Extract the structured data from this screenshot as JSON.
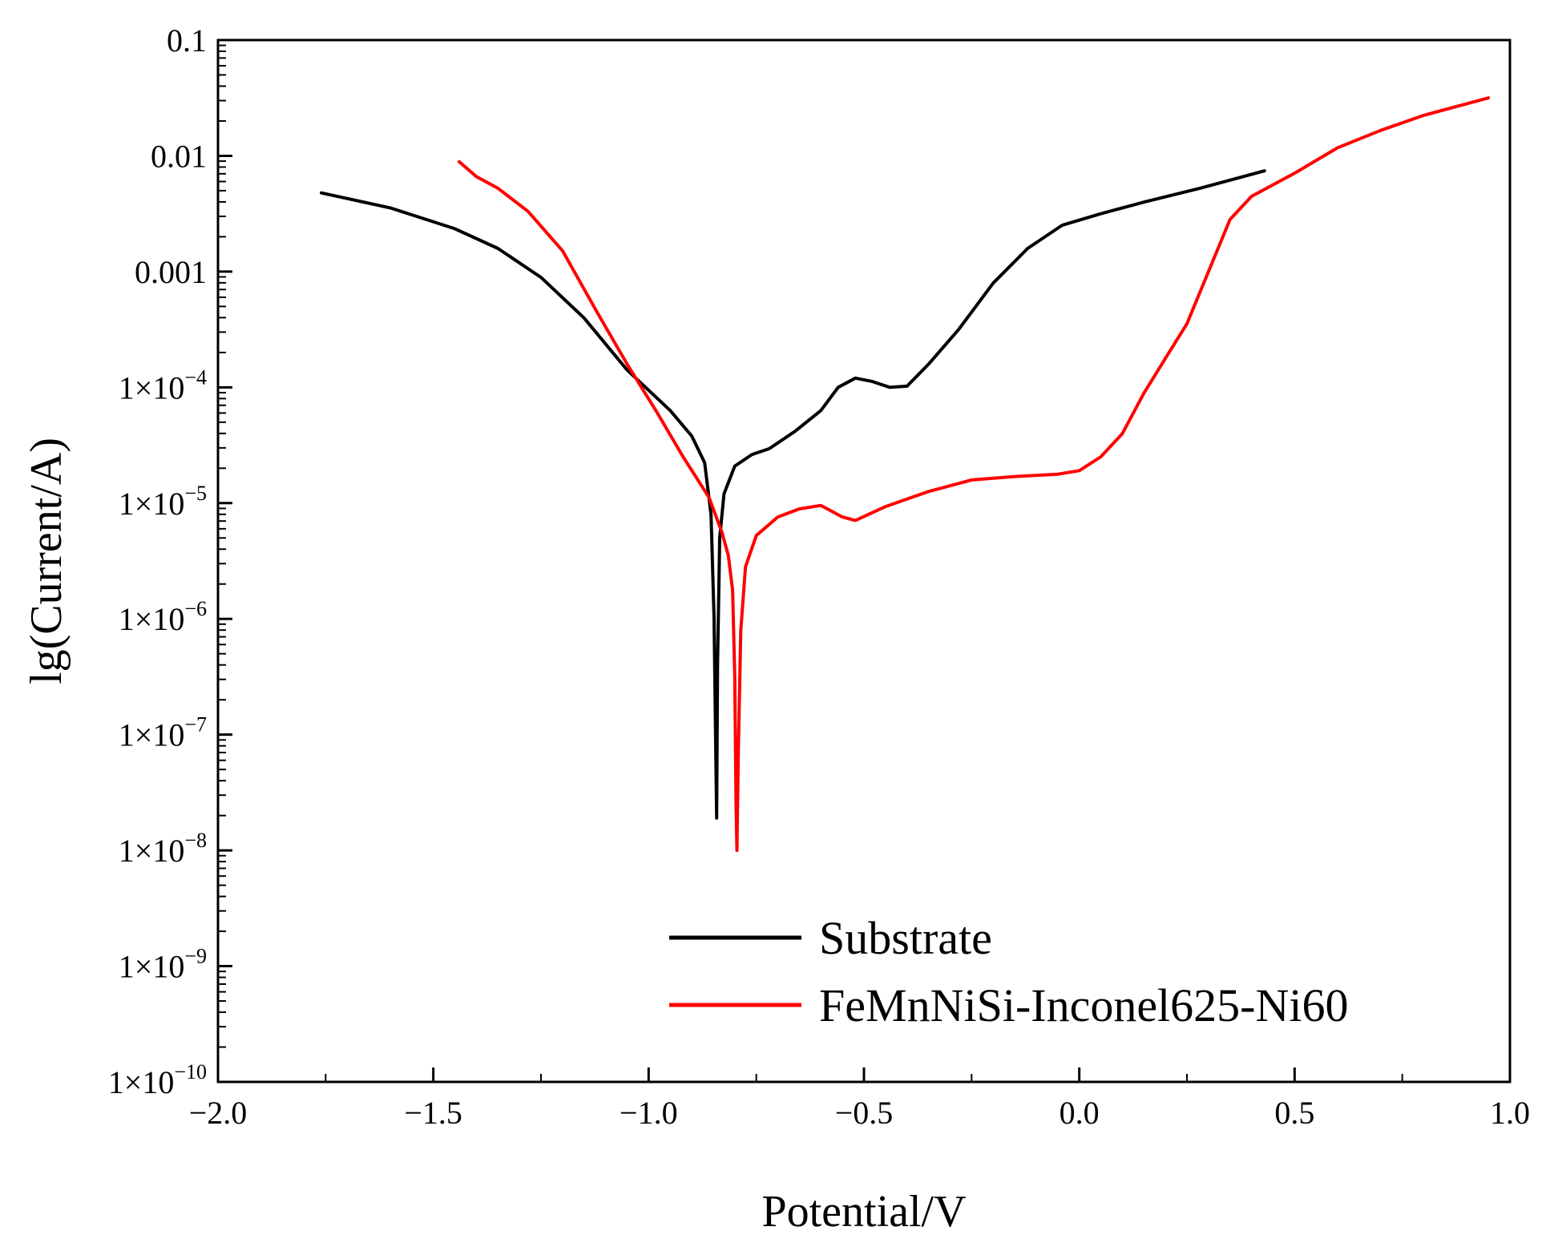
{
  "chart_data": {
    "type": "line",
    "title": "",
    "xlabel": "Potential/V",
    "ylabel": "lg(Current/A)",
    "xlim": [
      -2.0,
      1.0
    ],
    "ylim_log10": [
      -10,
      -1
    ],
    "y_scale": "log",
    "x_ticks": [
      {
        "value": -2.0,
        "label": "−2.0"
      },
      {
        "value": -1.5,
        "label": "−1.5"
      },
      {
        "value": -1.0,
        "label": "−1.0"
      },
      {
        "value": -0.5,
        "label": "−0.5"
      },
      {
        "value": 0.0,
        "label": "0.0"
      },
      {
        "value": 0.5,
        "label": "0.5"
      },
      {
        "value": 1.0,
        "label": "1.0"
      }
    ],
    "y_ticks": [
      {
        "exp": -1,
        "label": "0.1",
        "sup": ""
      },
      {
        "exp": -2,
        "label": "0.01",
        "sup": ""
      },
      {
        "exp": -3,
        "label": "0.001",
        "sup": ""
      },
      {
        "exp": -4,
        "label": "1×10",
        "sup": "−4"
      },
      {
        "exp": -5,
        "label": "1×10",
        "sup": "−5"
      },
      {
        "exp": -6,
        "label": "1×10",
        "sup": "−6"
      },
      {
        "exp": -7,
        "label": "1×10",
        "sup": "−7"
      },
      {
        "exp": -8,
        "label": "1×10",
        "sup": "−8"
      },
      {
        "exp": -9,
        "label": "1×10",
        "sup": "−9"
      },
      {
        "exp": -10,
        "label": "1×10",
        "sup": "−10"
      }
    ],
    "legend_position": "bottom-right",
    "series": [
      {
        "name": "Substrate",
        "color": "#000000",
        "points": [
          [
            -1.76,
            -2.32
          ],
          [
            -1.6,
            -2.45
          ],
          [
            -1.45,
            -2.63
          ],
          [
            -1.35,
            -2.8
          ],
          [
            -1.25,
            -3.05
          ],
          [
            -1.15,
            -3.4
          ],
          [
            -1.05,
            -3.85
          ],
          [
            -0.95,
            -4.2
          ],
          [
            -0.9,
            -4.42
          ],
          [
            -0.87,
            -4.65
          ],
          [
            -0.855,
            -5.1
          ],
          [
            -0.848,
            -6.0
          ],
          [
            -0.844,
            -7.2
          ],
          [
            -0.842,
            -7.72
          ],
          [
            -0.84,
            -6.4
          ],
          [
            -0.835,
            -5.3
          ],
          [
            -0.825,
            -4.92
          ],
          [
            -0.8,
            -4.68
          ],
          [
            -0.76,
            -4.58
          ],
          [
            -0.72,
            -4.53
          ],
          [
            -0.66,
            -4.38
          ],
          [
            -0.6,
            -4.2
          ],
          [
            -0.56,
            -4.0
          ],
          [
            -0.52,
            -3.92
          ],
          [
            -0.48,
            -3.95
          ],
          [
            -0.44,
            -4.0
          ],
          [
            -0.4,
            -3.99
          ],
          [
            -0.35,
            -3.8
          ],
          [
            -0.28,
            -3.5
          ],
          [
            -0.2,
            -3.1
          ],
          [
            -0.12,
            -2.8
          ],
          [
            -0.04,
            -2.6
          ],
          [
            0.05,
            -2.5
          ],
          [
            0.15,
            -2.4
          ],
          [
            0.28,
            -2.28
          ],
          [
            0.43,
            -2.13
          ]
        ]
      },
      {
        "name": "FeMnNiSi-Inconel625-Ni60",
        "color": "#ff0000",
        "points": [
          [
            -1.44,
            -2.05
          ],
          [
            -1.4,
            -2.18
          ],
          [
            -1.35,
            -2.28
          ],
          [
            -1.28,
            -2.48
          ],
          [
            -1.2,
            -2.82
          ],
          [
            -1.12,
            -3.35
          ],
          [
            -1.05,
            -3.8
          ],
          [
            -0.98,
            -4.22
          ],
          [
            -0.92,
            -4.6
          ],
          [
            -0.86,
            -4.95
          ],
          [
            -0.83,
            -5.25
          ],
          [
            -0.815,
            -5.45
          ],
          [
            -0.805,
            -5.75
          ],
          [
            -0.8,
            -6.5
          ],
          [
            -0.797,
            -7.6
          ],
          [
            -0.795,
            -8.0
          ],
          [
            -0.792,
            -7.2
          ],
          [
            -0.786,
            -6.1
          ],
          [
            -0.775,
            -5.55
          ],
          [
            -0.75,
            -5.28
          ],
          [
            -0.7,
            -5.12
          ],
          [
            -0.65,
            -5.05
          ],
          [
            -0.6,
            -5.02
          ],
          [
            -0.55,
            -5.12
          ],
          [
            -0.52,
            -5.15
          ],
          [
            -0.45,
            -5.03
          ],
          [
            -0.35,
            -4.9
          ],
          [
            -0.25,
            -4.8
          ],
          [
            -0.15,
            -4.77
          ],
          [
            -0.05,
            -4.75
          ],
          [
            0.0,
            -4.72
          ],
          [
            0.05,
            -4.6
          ],
          [
            0.1,
            -4.4
          ],
          [
            0.15,
            -4.05
          ],
          [
            0.2,
            -3.75
          ],
          [
            0.25,
            -3.45
          ],
          [
            0.3,
            -3.0
          ],
          [
            0.35,
            -2.55
          ],
          [
            0.4,
            -2.35
          ],
          [
            0.5,
            -2.15
          ],
          [
            0.6,
            -1.93
          ],
          [
            0.7,
            -1.78
          ],
          [
            0.8,
            -1.65
          ],
          [
            0.95,
            -1.5
          ]
        ]
      }
    ]
  }
}
